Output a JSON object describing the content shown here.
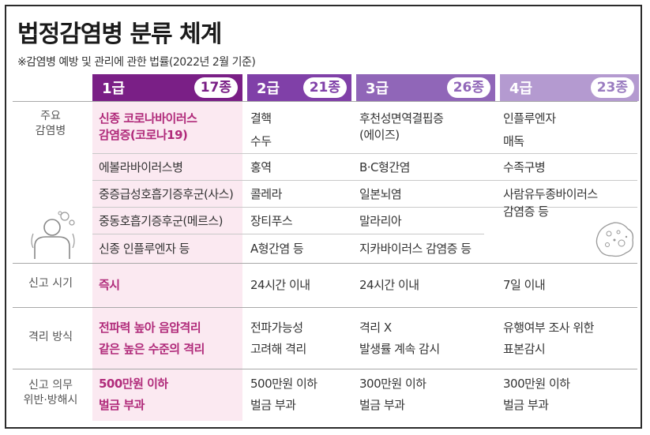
{
  "title": "법정감염병 분류 체계",
  "subtitle": "※감염병 예방 및 관리에 관한 법률(2022년 2월 기준)",
  "grades": [
    {
      "label": "1급",
      "count": "17종",
      "color": "#7a1f86"
    },
    {
      "label": "2급",
      "count": "21종",
      "color": "#8040a8"
    },
    {
      "label": "3급",
      "count": "26종",
      "color": "#9066b8"
    },
    {
      "label": "4급",
      "count": "23종",
      "color": "#b49ad0"
    }
  ],
  "row_labels": {
    "diseases": [
      "주요",
      "감염병"
    ],
    "report_time": "신고 시기",
    "isolation": "격리 방식",
    "penalty": [
      "신고 의무",
      "위반·방해시"
    ]
  },
  "diseases": {
    "g1": [
      "신종 코로나바이러스",
      "감염증(코로나19)",
      "에볼라바이러스병",
      "중증급성호흡기증후군(사스)",
      "중동호흡기증후군(메르스)",
      "신종 인플루엔자 등"
    ],
    "g2": [
      "결핵",
      "수두",
      "홍역",
      "콜레라",
      "장티푸스",
      "A형간염 등"
    ],
    "g3": [
      "후천성면역결핍증",
      "(에이즈)",
      "B·C형간염",
      "일본뇌염",
      "말라리아",
      "지카바이러스 감염증 등"
    ],
    "g4": [
      "인플루엔자",
      "매독",
      "수족구병",
      "사람유두종바이러스",
      "감염증 등"
    ]
  },
  "report_time": [
    "즉시",
    "24시간 이내",
    "24시간 이내",
    "7일 이내"
  ],
  "isolation": [
    [
      "전파력 높아 음압격리",
      "같은 높은 수준의 격리"
    ],
    [
      "전파가능성",
      "고려해 격리"
    ],
    [
      "격리 X",
      "발생률 계속 감시"
    ],
    [
      "유행여부 조사 위한",
      "표본감시"
    ]
  ],
  "penalty": [
    [
      "500만원 이하",
      "벌금 부과"
    ],
    [
      "500만원 이하",
      "벌금 부과"
    ],
    [
      "300만원 이하",
      "벌금 부과"
    ],
    [
      "300만원 이하",
      "벌금 부과"
    ]
  ],
  "colors": {
    "accent_pink": "#b02a7a",
    "col1_background": "#fbe9f1"
  },
  "icons": [
    "person-icon",
    "virus-icon"
  ]
}
